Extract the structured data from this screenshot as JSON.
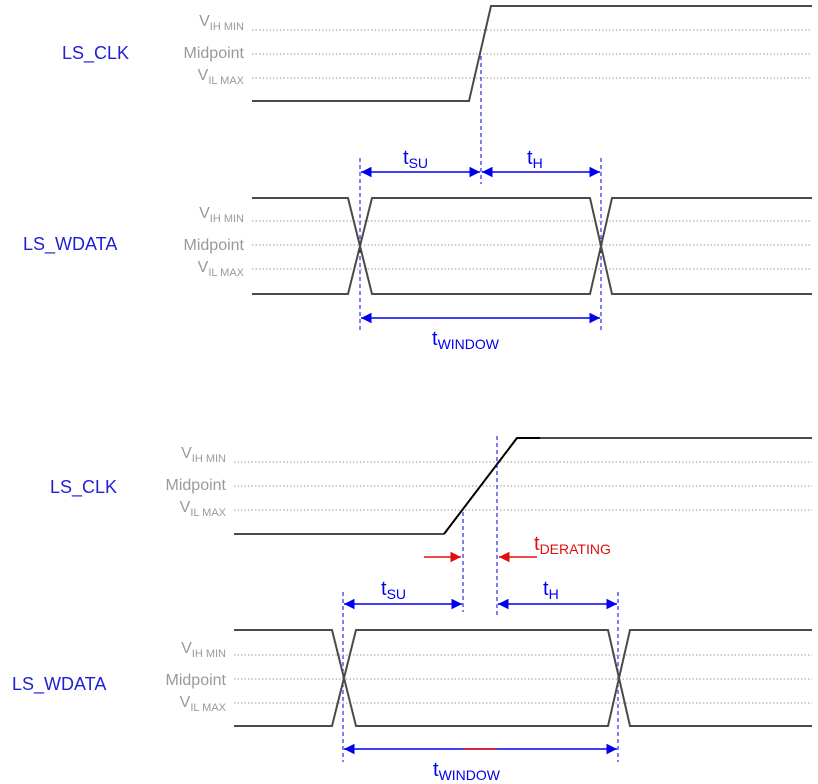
{
  "colors": {
    "signal_label": "#1f1fd6",
    "level_label": "#9a9a9a",
    "waveform": "#4a4a4a",
    "clk_edge_slow": "#000000",
    "timing": "#0000ee",
    "derating": "#e01010",
    "dotted": "#9a9a9a"
  },
  "levels": {
    "vih": {
      "main": "V",
      "sub": "IH MIN"
    },
    "mid": "Midpoint",
    "vil": {
      "main": "V",
      "sub": "IL MAX"
    }
  },
  "diagram_top": {
    "clk_label": "LS_CLK",
    "data_label": "LS_WDATA",
    "tsu": {
      "main": "t",
      "sub": "SU"
    },
    "th": {
      "main": "t",
      "sub": "H"
    },
    "twindow": {
      "main": "t",
      "sub": "WINDOW"
    }
  },
  "diagram_bottom": {
    "clk_label": "LS_CLK",
    "data_label": "LS_WDATA",
    "tsu": {
      "main": "t",
      "sub": "SU"
    },
    "th": {
      "main": "t",
      "sub": "H"
    },
    "tderating": {
      "main": "t",
      "sub": "DERATING"
    },
    "twindow": {
      "main": "t",
      "sub": "WINDOW"
    }
  }
}
